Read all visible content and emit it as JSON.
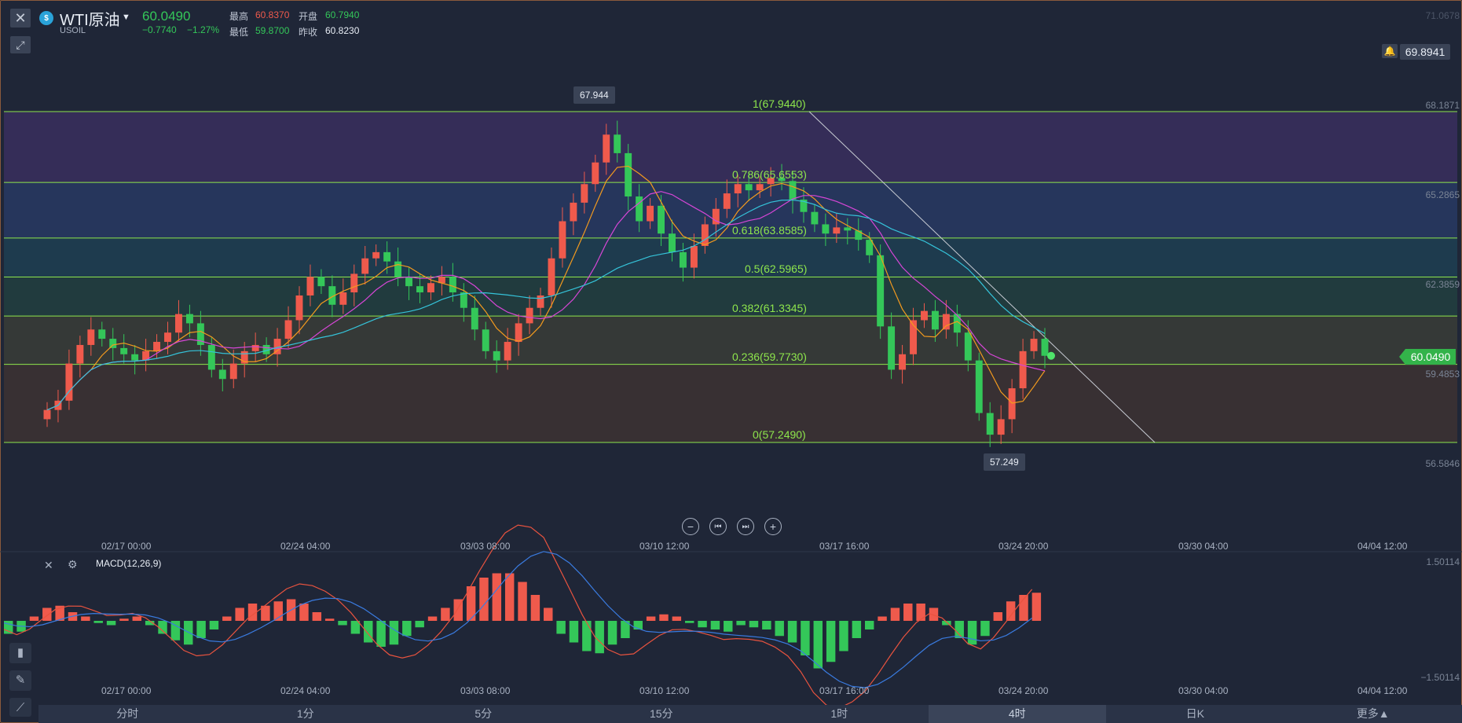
{
  "header": {
    "close_icon": "close-icon",
    "draw_icon": "draw-tool-icon",
    "badge": "$",
    "symbol": "WTI原油",
    "code": "USOIL",
    "price": "60.0490",
    "change": "−0.7740",
    "change_pct": "−1.27%",
    "high_label": "最高",
    "high": "60.8370",
    "open_label": "开盘",
    "open": "60.7940",
    "low_label": "最低",
    "low": "59.8700",
    "prev_label": "昨收",
    "prev": "60.8230",
    "last_price": "69.8941"
  },
  "colors": {
    "up": "#ef5a4c",
    "down": "#34c759",
    "fib_line": "#8ee64c",
    "ma5": "#f39a1e",
    "ma10": "#d646d6",
    "ma20": "#35c3d9",
    "dif": "#e8533f",
    "dea": "#3a7be0"
  },
  "price_axis": {
    "labels": [
      "71.0678",
      "68.1871",
      "65.2865",
      "62.3859",
      "59.4853",
      "56.5846"
    ]
  },
  "current_price_tag": "60.0490",
  "callouts": {
    "high": "67.944",
    "low": "57.249"
  },
  "fib_levels": [
    {
      "ratio": "1",
      "value": 67.944,
      "label": "1(67.9440)"
    },
    {
      "ratio": "0.786",
      "value": 65.6553,
      "label": "0.786(65.6553)"
    },
    {
      "ratio": "0.618",
      "value": 63.8585,
      "label": "0.618(63.8585)"
    },
    {
      "ratio": "0.5",
      "value": 62.5965,
      "label": "0.5(62.5965)"
    },
    {
      "ratio": "0.382",
      "value": 61.3345,
      "label": "0.382(61.3345)"
    },
    {
      "ratio": "0.236",
      "value": 59.773,
      "label": "0.236(59.7730)"
    },
    {
      "ratio": "0",
      "value": 57.249,
      "label": "0(57.2490)"
    }
  ],
  "x_axis_labels": [
    "02/17 00:00",
    "02/24 04:00",
    "03/03 08:00",
    "03/10 12:00",
    "03/17 16:00",
    "03/24 20:00",
    "03/30 04:00",
    "04/04 12:00"
  ],
  "zoom_controls": [
    "minus-icon",
    "skip-back-icon",
    "skip-forward-icon",
    "plus-icon"
  ],
  "macd": {
    "title": "MACD(12,26,9)",
    "max_label": "1.50114",
    "min_label": "−1.50114",
    "close_icon": "close-icon",
    "settings_icon": "settings-icon"
  },
  "side_tools": [
    "indicator-icon",
    "pen-icon",
    "line-tool-icon"
  ],
  "tabs": [
    {
      "label": "分时",
      "active": false
    },
    {
      "label": "1分",
      "active": false
    },
    {
      "label": "5分",
      "active": false
    },
    {
      "label": "15分",
      "active": false
    },
    {
      "label": "1时",
      "active": false
    },
    {
      "label": "4时",
      "active": true
    },
    {
      "label": "日K",
      "active": false
    },
    {
      "label": "更多▲",
      "active": false
    }
  ],
  "chart_data": {
    "type": "candlestick",
    "symbol": "USOIL",
    "interval": "4时",
    "ylim": [
      56.0,
      71.0678
    ],
    "grid": false,
    "fib_high": 67.944,
    "fib_low": 57.249,
    "closes": [
      58.3,
      58.6,
      59.8,
      60.4,
      60.9,
      60.6,
      60.3,
      60.1,
      59.9,
      60.2,
      60.5,
      60.8,
      61.4,
      61.1,
      60.4,
      59.6,
      59.3,
      59.8,
      60.2,
      60.4,
      60.1,
      60.6,
      61.2,
      62.0,
      62.6,
      62.3,
      61.7,
      62.1,
      62.7,
      63.2,
      63.4,
      63.1,
      62.6,
      62.3,
      62.1,
      62.4,
      62.6,
      62.1,
      61.6,
      60.9,
      60.2,
      59.9,
      60.5,
      61.1,
      61.6,
      62.0,
      63.2,
      64.4,
      65.0,
      65.6,
      66.3,
      67.2,
      66.6,
      65.2,
      64.4,
      64.9,
      64.0,
      63.4,
      62.9,
      63.6,
      64.3,
      64.8,
      65.3,
      65.6,
      65.4,
      65.6,
      65.8,
      65.7,
      65.1,
      64.7,
      64.3,
      64.0,
      64.2,
      64.1,
      63.8,
      63.3,
      61.0,
      59.6,
      60.1,
      61.2,
      61.5,
      60.9,
      61.4,
      60.8,
      59.9,
      58.2,
      57.5,
      58.0,
      59.0,
      60.2,
      60.6,
      60.05
    ],
    "ma5_visible": true,
    "ma10_visible": true,
    "ma20_visible": true,
    "macd_hist": [
      -0.3,
      -0.25,
      0.1,
      0.3,
      0.35,
      0.2,
      0.1,
      -0.05,
      -0.1,
      0.05,
      0.1,
      -0.1,
      -0.3,
      -0.45,
      -0.55,
      -0.4,
      -0.2,
      0.1,
      0.3,
      0.4,
      0.35,
      0.45,
      0.5,
      0.4,
      0.2,
      0.05,
      -0.1,
      -0.3,
      -0.5,
      -0.6,
      -0.55,
      -0.35,
      -0.15,
      0.1,
      0.3,
      0.5,
      0.8,
      1.0,
      1.1,
      1.1,
      0.9,
      0.6,
      0.3,
      -0.3,
      -0.5,
      -0.7,
      -0.75,
      -0.55,
      -0.4,
      -0.2,
      0.1,
      0.15,
      0.1,
      -0.05,
      -0.15,
      -0.2,
      -0.25,
      -0.1,
      -0.15,
      -0.2,
      -0.35,
      -0.5,
      -0.8,
      -1.1,
      -0.95,
      -0.7,
      -0.4,
      -0.2,
      0.1,
      0.3,
      0.4,
      0.4,
      0.3,
      -0.1,
      -0.4,
      -0.55,
      -0.35,
      0.2,
      0.45,
      0.6,
      0.65
    ]
  }
}
